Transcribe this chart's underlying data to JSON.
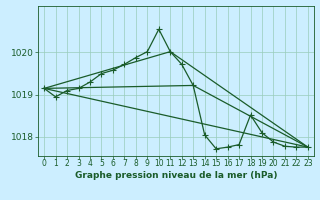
{
  "background_color": "#cceeff",
  "grid_color": "#99ccbb",
  "line_color": "#1a5c2a",
  "title": "Graphe pression niveau de la mer (hPa)",
  "title_fontsize": 6.5,
  "tick_fontsize": 5.5,
  "ytick_fontsize": 6.5,
  "xlim": [
    -0.5,
    23.5
  ],
  "ylim": [
    1017.55,
    1021.1
  ],
  "yticks": [
    1018,
    1019,
    1020
  ],
  "xticks": [
    0,
    1,
    2,
    3,
    4,
    5,
    6,
    7,
    8,
    9,
    10,
    11,
    12,
    13,
    14,
    15,
    16,
    17,
    18,
    19,
    20,
    21,
    22,
    23
  ],
  "series1_x": [
    0,
    1,
    2,
    3,
    4,
    5,
    6,
    7,
    8,
    9,
    10,
    11,
    12,
    13,
    14,
    15,
    16,
    17,
    18,
    19,
    20,
    21,
    22,
    23
  ],
  "series1_y": [
    1019.15,
    1018.95,
    1019.1,
    1019.15,
    1019.3,
    1019.5,
    1019.58,
    1019.72,
    1019.88,
    1020.02,
    1020.55,
    1020.02,
    1019.72,
    1019.22,
    1018.05,
    1017.72,
    1017.76,
    1017.82,
    1018.52,
    1018.1,
    1017.88,
    1017.78,
    1017.76,
    1017.76
  ],
  "series2_x": [
    0,
    23
  ],
  "series2_y": [
    1019.15,
    1017.76
  ],
  "series3_x": [
    0,
    11,
    23
  ],
  "series3_y": [
    1019.15,
    1020.02,
    1017.76
  ],
  "series4_x": [
    0,
    13,
    23
  ],
  "series4_y": [
    1019.15,
    1019.22,
    1017.76
  ],
  "lw": 0.9,
  "marker_size": 2.2
}
